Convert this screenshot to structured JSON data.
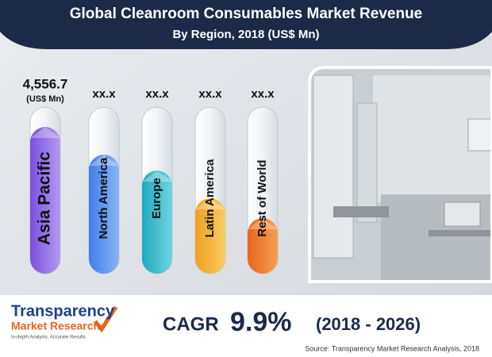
{
  "header": {
    "title": "Global Cleanroom Consumables Market Revenue",
    "subtitle": "By Region, 2018 (US$ Mn)"
  },
  "regions": [
    {
      "name": "Asia Pacific",
      "value_label": "4,556.7",
      "unit": "(US$ Mn)"
    },
    {
      "name": "North America",
      "value_label": "xx.x"
    },
    {
      "name": "Europe",
      "value_label": "xx.x"
    },
    {
      "name": "Latin America",
      "value_label": "xx.x"
    },
    {
      "name": "Rest of World",
      "value_label": "xx.x"
    }
  ],
  "cagr": {
    "label": "CAGR",
    "value": "9.9%",
    "period": "(2018 - 2026)"
  },
  "logo": {
    "line1": "Transparency",
    "line2": "Market Research",
    "tagline": "In-depth Analysis, Accurate Results"
  },
  "source": "Source: Transparency Market Research Analysis, 2018"
}
